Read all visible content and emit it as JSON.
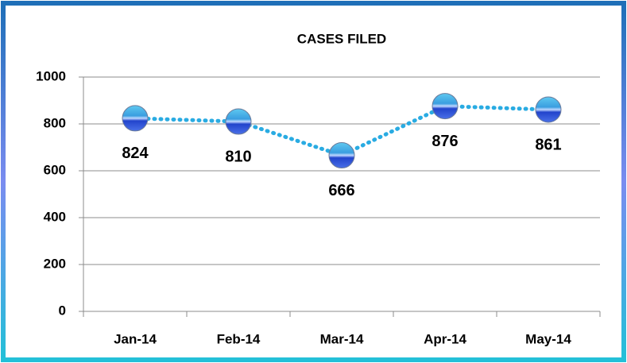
{
  "chart_data": {
    "type": "line",
    "title": "CASES FILED",
    "categories": [
      "Jan-14",
      "Feb-14",
      "Mar-14",
      "Apr-14",
      "May-14"
    ],
    "values": [
      824,
      810,
      666,
      876,
      861
    ],
    "color": "#29abe2",
    "ylim": [
      0,
      1000
    ],
    "yticks": [
      0,
      200,
      400,
      600,
      800,
      1000
    ],
    "grid": true
  }
}
